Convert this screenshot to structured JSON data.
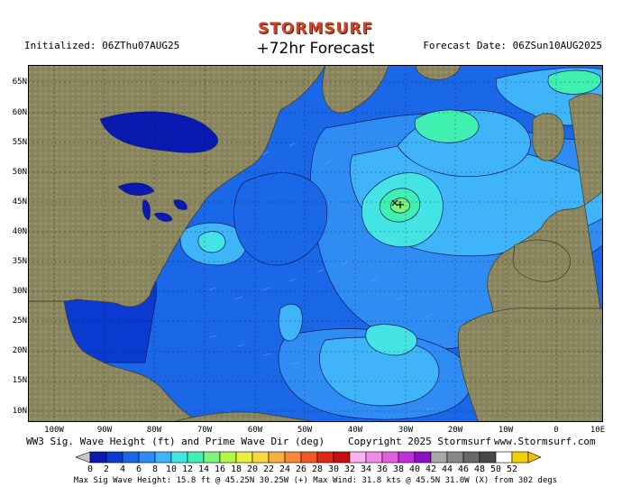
{
  "brand": "STORMSURF",
  "title": "+72hr Forecast",
  "initialized": "Initialized: 06ZThu07AUG25",
  "forecast_date": "Forecast Date: 06ZSun10AUG2025",
  "caption": "WW3 Sig. Wave Height (ft) and Prime Wave Dir (deg)",
  "copyright": "Copyright 2025 Stormsurf",
  "website": "www.Stormsurf.com",
  "footer": "Max Sig Wave Height: 15.8 ft @ 45.25N 30.25W (+)  Max Wind: 31.8 kts @ 45.5N 31.0W (X) from 302 degs",
  "lat_labels": [
    "65N",
    "60N",
    "55N",
    "50N",
    "45N",
    "40N",
    "35N",
    "30N",
    "25N",
    "20N",
    "15N",
    "10N"
  ],
  "lon_labels": [
    "100W",
    "90W",
    "80W",
    "70W",
    "60W",
    "50W",
    "40W",
    "30W",
    "20W",
    "10W",
    "0",
    "10E"
  ],
  "scale_values": [
    "0",
    "2",
    "4",
    "6",
    "8",
    "10",
    "12",
    "14",
    "16",
    "18",
    "20",
    "22",
    "24",
    "26",
    "28",
    "30",
    "32",
    "34",
    "36",
    "38",
    "40",
    "42",
    "44",
    "46",
    "48",
    "50",
    "52"
  ],
  "scale_colors": [
    "#0a1ab0",
    "#0a3ad0",
    "#1a68e8",
    "#2f8cf2",
    "#3fb4f8",
    "#44e4e4",
    "#40f0b0",
    "#7cf57a",
    "#b6f54a",
    "#e8f040",
    "#f8d840",
    "#f8b040",
    "#f88838",
    "#f05828",
    "#e02818",
    "#c80c10",
    "#f8b4f0",
    "#f08ce8",
    "#e060e0",
    "#c030d8",
    "#9010c0",
    "#a8a8a8",
    "#888888",
    "#686868",
    "#484848",
    "#ffffff",
    "#f0d000"
  ],
  "colors": {
    "land": "#8a8760",
    "land_mountain": "#a4a070",
    "deep_ocean": "#0a1ab0",
    "ocean_2_4": "#1a68e8",
    "ocean_4_6": "#2f8cf2",
    "ocean_6_8": "#3fb4f8",
    "peak": "#40f0b0",
    "brand": "#d0452a"
  },
  "max_sig_wave": {
    "lat": 45.25,
    "lon": -30.25,
    "height_ft": 15.8
  },
  "max_wind": {
    "lat": 45.5,
    "lon": -31.0,
    "kts": 31.8,
    "from_deg": 302
  }
}
